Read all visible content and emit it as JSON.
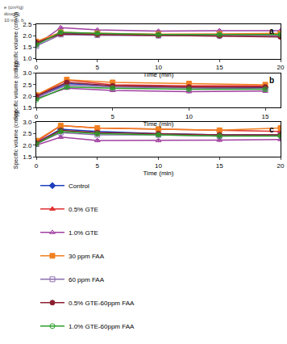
{
  "caption": [
    "e (cm³/g)",
    "dough",
    "10 min, b"
  ],
  "chart_data": [
    {
      "type": "line",
      "title": "a",
      "x_label": "Time (min)",
      "y_label": "Specific volume (cm³/g)",
      "xlim": [
        0,
        20
      ],
      "xticks": [
        0,
        5,
        10,
        15,
        20
      ],
      "ylim": [
        1,
        2.5
      ],
      "yticks": [
        {
          "value": 1,
          "label": "1.0"
        },
        1.5,
        {
          "value": 2,
          "label": "2.0"
        },
        2.5
      ],
      "grid": false,
      "legend": "bottom",
      "x": [
        0,
        2,
        5,
        10,
        15,
        20
      ],
      "series": [
        {
          "name": "Control",
          "color": "#1f3fbf",
          "marker": "diamond",
          "line_style": "solid",
          "values": [
            1.65,
            2.12,
            2.08,
            2.05,
            2.0,
            2.0
          ],
          "errors": [
            0.04,
            0.05,
            0.04,
            0.04,
            0.04,
            0.04
          ]
        },
        {
          "name": "0.5% GTE",
          "color": "#e03030",
          "marker": "triangle-up",
          "line_style": "solid",
          "values": [
            1.7,
            2.05,
            2.05,
            2.0,
            2.0,
            2.0
          ],
          "errors": [
            0.04,
            0.05,
            0.04,
            0.04,
            0.04,
            0.04
          ]
        },
        {
          "name": "1.0% GTE",
          "color": "#a040a0",
          "marker": "triangle-up-open",
          "line_style": "solid",
          "values": [
            1.6,
            2.35,
            2.25,
            2.2,
            2.22,
            2.22
          ],
          "errors": [
            0.04,
            0.05,
            0.04,
            0.04,
            0.04,
            0.04
          ]
        },
        {
          "name": "30 ppm FAA",
          "color": "#f08020",
          "marker": "square",
          "line_style": "solid",
          "values": [
            1.75,
            2.15,
            2.1,
            2.07,
            2.08,
            2.1
          ],
          "errors": [
            0.04,
            0.05,
            0.04,
            0.04,
            0.04,
            0.04
          ]
        },
        {
          "name": "60 ppm FAA",
          "color": "#8c6fb0",
          "marker": "square-open",
          "line_style": "solid",
          "values": [
            1.55,
            2.05,
            2.02,
            2.0,
            2.0,
            1.98
          ],
          "errors": [
            0.04,
            0.05,
            0.04,
            0.04,
            0.04,
            0.04
          ]
        },
        {
          "name": "0.5% GTE-60ppm FAA",
          "color": "#8b2030",
          "marker": "circle",
          "line_style": "solid",
          "values": [
            1.7,
            2.08,
            2.05,
            2.02,
            2.0,
            1.95
          ],
          "errors": [
            0.04,
            0.05,
            0.04,
            0.04,
            0.04,
            0.04
          ]
        },
        {
          "name": "1.0% GTE-60ppm FAA",
          "color": "#2ca02c",
          "marker": "circle-open",
          "line_style": "solid",
          "values": [
            1.6,
            2.15,
            2.1,
            2.05,
            2.05,
            2.05
          ],
          "errors": [
            0.04,
            0.05,
            0.04,
            0.04,
            0.04,
            0.04
          ]
        }
      ]
    },
    {
      "type": "line",
      "title": "b",
      "x_label": "Time (min)",
      "y_label": "Specific volume (cm³/g)",
      "xlim": [
        0,
        16
      ],
      "xticks": [
        0,
        5,
        10,
        15
      ],
      "ylim": [
        1.5,
        3
      ],
      "yticks": [
        1.5,
        {
          "value": 2,
          "label": "2.0"
        },
        2.5,
        {
          "value": 3,
          "label": "3.0"
        }
      ],
      "grid": false,
      "legend": "bottom",
      "x": [
        0,
        2,
        5,
        10,
        15
      ],
      "series": [
        {
          "name": "Control",
          "color": "#1f3fbf",
          "marker": "diamond",
          "line_style": "solid",
          "values": [
            1.95,
            2.55,
            2.45,
            2.4,
            2.38
          ],
          "errors": [
            0.04,
            0.05,
            0.05,
            0.05,
            0.05
          ]
        },
        {
          "name": "0.5% GTE",
          "color": "#e03030",
          "marker": "triangle-up",
          "line_style": "solid",
          "values": [
            2.0,
            2.7,
            2.5,
            2.45,
            2.45
          ],
          "errors": [
            0.04,
            0.05,
            0.05,
            0.05,
            0.05
          ]
        },
        {
          "name": "1.0% GTE",
          "color": "#a040a0",
          "marker": "triangle-up-open",
          "line_style": "solid",
          "values": [
            1.9,
            2.35,
            2.25,
            2.2,
            2.22
          ],
          "errors": [
            0.04,
            0.05,
            0.05,
            0.05,
            0.05
          ]
        },
        {
          "name": "30 ppm FAA",
          "color": "#f08020",
          "marker": "square",
          "line_style": "solid",
          "values": [
            2.05,
            2.72,
            2.6,
            2.55,
            2.5
          ],
          "errors": [
            0.04,
            0.05,
            0.05,
            0.08,
            0.05
          ]
        },
        {
          "name": "60 ppm FAA",
          "color": "#8c6fb0",
          "marker": "square-open",
          "line_style": "solid",
          "values": [
            1.95,
            2.48,
            2.4,
            2.35,
            2.32
          ],
          "errors": [
            0.04,
            0.05,
            0.05,
            0.05,
            0.05
          ]
        },
        {
          "name": "0.5% GTE-60ppm FAA",
          "color": "#8b2030",
          "marker": "circle",
          "line_style": "solid",
          "values": [
            2.0,
            2.6,
            2.45,
            2.4,
            2.4
          ],
          "errors": [
            0.04,
            0.05,
            0.05,
            0.05,
            0.05
          ]
        },
        {
          "name": "1.0% GTE-60ppm FAA",
          "color": "#2ca02c",
          "marker": "circle-open",
          "line_style": "solid",
          "values": [
            1.85,
            2.4,
            2.35,
            2.3,
            2.3
          ],
          "errors": [
            0.04,
            0.05,
            0.05,
            0.05,
            0.05
          ]
        }
      ]
    },
    {
      "type": "line",
      "title": "c",
      "x_label": "Time (min)",
      "y_label": "Specific volume (cm³/g)",
      "xlim": [
        0,
        20
      ],
      "xticks": [
        0,
        5,
        10,
        15,
        20
      ],
      "ylim": [
        1.5,
        3
      ],
      "yticks": [
        1.5,
        {
          "value": 2,
          "label": "2.0"
        },
        2.5,
        {
          "value": 3,
          "label": "3.0"
        }
      ],
      "grid": false,
      "legend": "bottom",
      "x": [
        0,
        2,
        5,
        10,
        15,
        20
      ],
      "series": [
        {
          "name": "Control",
          "color": "#1f3fbf",
          "marker": "diamond",
          "line_style": "solid",
          "values": [
            2.1,
            2.7,
            2.6,
            2.5,
            2.45,
            2.45
          ],
          "errors": [
            0.04,
            0.05,
            0.05,
            0.05,
            0.05,
            0.05
          ]
        },
        {
          "name": "0.5% GTE",
          "color": "#e03030",
          "marker": "triangle-up",
          "line_style": "solid",
          "values": [
            2.15,
            2.85,
            2.75,
            2.7,
            2.65,
            2.6
          ],
          "errors": [
            0.04,
            0.05,
            0.05,
            0.05,
            0.05,
            0.05
          ]
        },
        {
          "name": "1.0% GTE",
          "color": "#a040a0",
          "marker": "triangle-up-open",
          "line_style": "solid",
          "values": [
            2.0,
            2.35,
            2.2,
            2.2,
            2.22,
            2.25
          ],
          "errors": [
            0.04,
            0.05,
            0.05,
            0.05,
            0.05,
            0.05
          ]
        },
        {
          "name": "30 ppm FAA",
          "color": "#f08020",
          "marker": "square",
          "line_style": "solid",
          "values": [
            2.2,
            2.85,
            2.75,
            2.7,
            2.65,
            2.75
          ],
          "errors": [
            0.04,
            0.05,
            0.05,
            0.05,
            0.05,
            0.05
          ]
        },
        {
          "name": "60 ppm FAA",
          "color": "#8c6fb0",
          "marker": "square-open",
          "line_style": "solid",
          "values": [
            2.05,
            2.55,
            2.45,
            2.45,
            2.4,
            2.45
          ],
          "errors": [
            0.04,
            0.05,
            0.05,
            0.05,
            0.05,
            0.05
          ]
        },
        {
          "name": "0.5% GTE-60ppm FAA",
          "color": "#8b2030",
          "marker": "circle",
          "line_style": "solid",
          "values": [
            2.1,
            2.65,
            2.55,
            2.5,
            2.45,
            2.45
          ],
          "errors": [
            0.04,
            0.05,
            0.05,
            0.05,
            0.05,
            0.05
          ]
        },
        {
          "name": "1.0% GTE-60ppm FAA",
          "color": "#2ca02c",
          "marker": "circle-open",
          "line_style": "solid",
          "values": [
            2.05,
            2.6,
            2.5,
            2.45,
            2.4,
            2.4
          ],
          "errors": [
            0.04,
            0.05,
            0.05,
            0.05,
            0.05,
            0.05
          ]
        }
      ]
    }
  ]
}
